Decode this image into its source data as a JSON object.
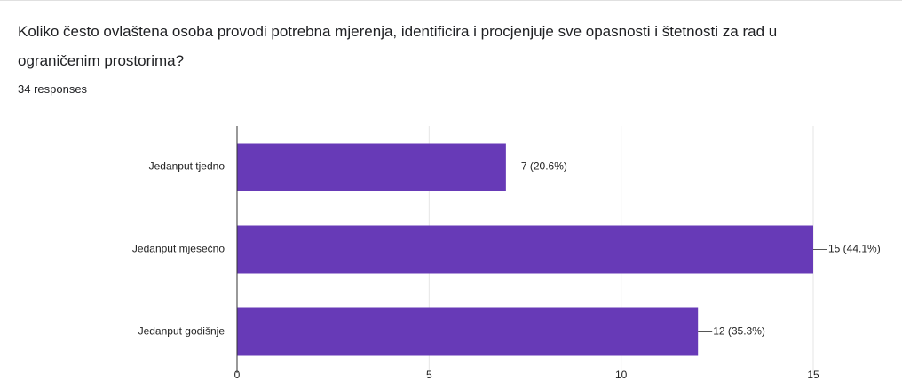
{
  "chart_data": {
    "type": "bar",
    "orientation": "horizontal",
    "title": "Koliko često ovlaštena osoba provodi potrebna mjerenja, identificira i procjenjuje sve opasnosti i štetnosti za rad u ograničenim prostorima?",
    "subtitle": "34 responses",
    "categories": [
      "Jedanput tjedno",
      "Jedanput mjesečno",
      "Jedanput godišnje"
    ],
    "values": [
      7,
      15,
      12
    ],
    "value_labels": [
      "7 (20.6%)",
      "15 (44.1%)",
      "12 (35.3%)"
    ],
    "color": "#673ab7",
    "xlim": [
      0,
      15
    ],
    "xticks": [
      0,
      5,
      10,
      15
    ],
    "grid": true
  }
}
